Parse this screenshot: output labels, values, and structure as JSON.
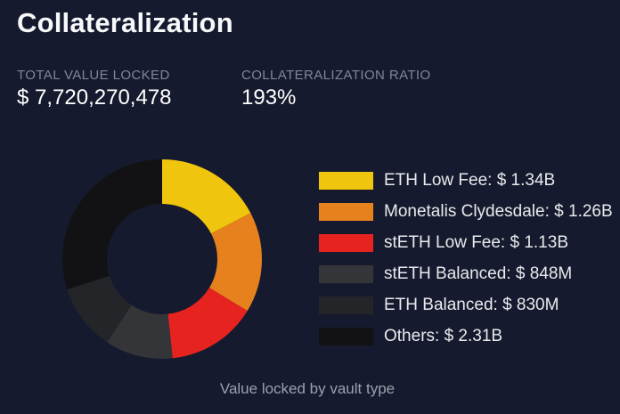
{
  "window": {
    "background": "#161a2e"
  },
  "header": {
    "title": "Collateralization"
  },
  "stats": [
    {
      "label": "TOTAL VALUE LOCKED",
      "value": "$ 7,720,270,478"
    },
    {
      "label": "COLLATERALIZATION RATIO",
      "value": "193%"
    }
  ],
  "chart_data": {
    "type": "pie",
    "donut": true,
    "start_angle_deg": 0,
    "direction": "clockwise",
    "title": "Value locked by vault type",
    "legend_position": "right",
    "total_displayed": "$ 7,720,270,478",
    "segments": [
      {
        "id": "eth-low-fee",
        "label": "ETH Low Fee",
        "display": "ETH Low Fee: $ 1.34B",
        "value_usd_billions": 1.34,
        "color": "#f0c50e"
      },
      {
        "id": "monetalis-clydesdale",
        "label": "Monetalis Clydesdale",
        "display": "Monetalis Clydesdale: $ 1.26B",
        "value_usd_billions": 1.26,
        "color": "#e6811e"
      },
      {
        "id": "steth-low-fee",
        "label": "stETH Low Fee",
        "display": "stETH Low Fee: $ 1.13B",
        "value_usd_billions": 1.13,
        "color": "#e6231f"
      },
      {
        "id": "steth-balanced",
        "label": "stETH Balanced",
        "display": "stETH Balanced: $ 848M",
        "value_usd_billions": 0.848,
        "color": "#343539"
      },
      {
        "id": "eth-balanced",
        "label": "ETH Balanced",
        "display": "ETH Balanced: $ 830M",
        "value_usd_billions": 0.83,
        "color": "#242529"
      },
      {
        "id": "others",
        "label": "Others",
        "display": "Others: $ 2.31B",
        "value_usd_billions": 2.31,
        "color": "#121215"
      }
    ]
  }
}
